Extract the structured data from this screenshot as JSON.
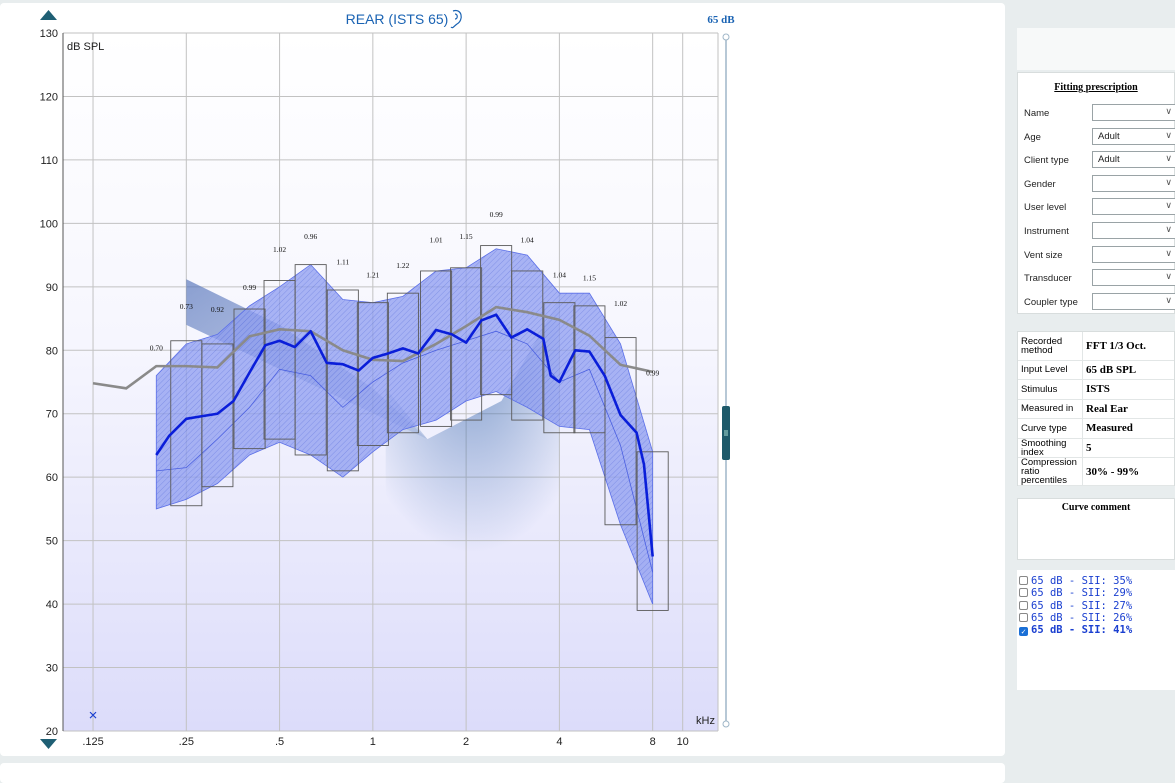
{
  "header": {
    "title": "REAR (ISTS 65)",
    "level_label": "65 dB"
  },
  "graph": {
    "y_unit": "dB SPL",
    "x_unit": "kHz",
    "y_ticks": [
      20,
      30,
      40,
      50,
      60,
      70,
      80,
      90,
      100,
      110,
      120,
      130
    ],
    "x_ticks": [
      ".125",
      ".25",
      ".5",
      "1",
      "2",
      "4",
      "8",
      "10"
    ],
    "icons": [
      "triangle-up-icon",
      "triangle-down-icon",
      "ear-icon",
      "slider-handle-icon"
    ]
  },
  "chart_data": {
    "type": "line",
    "x_scale": "log",
    "x_range_khz": [
      0.1,
      13
    ],
    "y_range": [
      20,
      130
    ],
    "target": {
      "freqs": [
        0.125,
        0.16,
        0.2,
        0.25,
        0.315,
        0.4,
        0.5,
        0.63,
        0.8,
        1,
        1.25,
        1.6,
        2,
        2.5,
        3.15,
        4,
        5,
        6.3,
        8
      ],
      "values": [
        74.8,
        74.0,
        77.5,
        77.5,
        77.3,
        82.2,
        83.3,
        83.0,
        80.0,
        78.5,
        78.3,
        81.0,
        83.8,
        86.8,
        86.0,
        84.8,
        82.3,
        77.7,
        76.6
      ]
    },
    "measured": {
      "freqs": [
        0.2,
        0.22,
        0.25,
        0.28,
        0.315,
        0.355,
        0.4,
        0.45,
        0.5,
        0.56,
        0.63,
        0.71,
        0.8,
        0.9,
        1.0,
        1.12,
        1.25,
        1.4,
        1.6,
        1.8,
        2.0,
        2.24,
        2.5,
        2.8,
        3.15,
        3.55,
        3.75,
        4.0,
        4.5,
        5.0,
        5.6,
        6.3,
        7.1,
        7.5,
        8.0
      ],
      "values": [
        63.5,
        66.5,
        69.2,
        69.6,
        70.0,
        72.0,
        76.5,
        80.8,
        81.5,
        80.5,
        83.0,
        78.0,
        77.8,
        76.8,
        78.8,
        79.5,
        80.3,
        79.5,
        83.2,
        82.5,
        81.2,
        84.7,
        85.6,
        82.0,
        83.3,
        81.8,
        76.0,
        75.0,
        80.0,
        79.8,
        76.0,
        69.8,
        67.0,
        62.0,
        47.5
      ]
    },
    "percentile_band": {
      "freqs": [
        0.2,
        0.25,
        0.315,
        0.4,
        0.5,
        0.63,
        0.8,
        1.0,
        1.25,
        1.6,
        2.0,
        2.5,
        3.15,
        4.0,
        5.0,
        6.3,
        8.0
      ],
      "upper": [
        76.0,
        81.0,
        82.5,
        87.0,
        90.0,
        93.5,
        88.0,
        87.5,
        88.5,
        92.5,
        93.0,
        96.0,
        95.0,
        89.0,
        89.0,
        81.0,
        64.0
      ],
      "lower": [
        55.0,
        56.5,
        59.0,
        63.5,
        65.5,
        63.5,
        60.0,
        64.0,
        67.5,
        69.0,
        72.0,
        73.5,
        71.0,
        68.0,
        67.5,
        52.5,
        40.0
      ],
      "median": [
        61.0,
        61.5,
        66.0,
        71.0,
        77.0,
        76.0,
        71.0,
        75.0,
        78.0,
        80.0,
        81.5,
        83.0,
        81.0,
        75.0,
        77.0,
        65.0,
        45.0
      ]
    },
    "percentile_boxes": {
      "freqs": [
        0.25,
        0.315,
        0.4,
        0.5,
        0.63,
        0.8,
        1.0,
        1.25,
        1.6,
        2.0,
        2.5,
        3.15,
        4.0,
        5.0,
        6.3,
        8.0
      ],
      "upper": [
        81.5,
        81.0,
        86.5,
        91.0,
        93.5,
        89.5,
        87.5,
        89.0,
        92.5,
        93.0,
        96.5,
        92.5,
        87.5,
        87.0,
        82.0,
        64.0
      ],
      "lower": [
        55.5,
        58.5,
        64.5,
        66.0,
        63.5,
        61.0,
        65.0,
        67.0,
        68.0,
        69.0,
        73.0,
        69.0,
        67.0,
        67.0,
        52.5,
        39.0
      ]
    },
    "compression_ratios": {
      "freqs": [
        0.2,
        0.25,
        0.315,
        0.4,
        0.5,
        0.63,
        0.8,
        1.0,
        1.25,
        1.6,
        2.0,
        2.5,
        3.15,
        4.0,
        5.0,
        6.3,
        8.0
      ],
      "labels": [
        "0.70",
        "0.73",
        "0.92",
        "0.99",
        "1.02",
        "0.96",
        "1.11",
        "1.21",
        "1.22",
        "1.01",
        "1.15",
        "0.99",
        "1.04",
        "1.04",
        "1.15",
        "1.02",
        "0.99"
      ],
      "y": [
        80.0,
        86.5,
        86.0,
        89.5,
        95.5,
        97.5,
        93.5,
        91.5,
        93.0,
        97.0,
        97.5,
        101.0,
        97.0,
        91.5,
        91.0,
        87.0,
        76.0
      ]
    },
    "unaided_marker": {
      "freq": 0.125,
      "value": 22.5
    },
    "colors": {
      "target": "#8a8a8a",
      "measured": "#0a1ed9",
      "band": "#5b6fe8",
      "shade": "#4f6fb8",
      "grid": "#c2c2c2"
    }
  },
  "fitting_prescription": {
    "title": "Fitting prescription",
    "fields": [
      {
        "label": "Name",
        "value": ""
      },
      {
        "label": "Age",
        "value": "Adult"
      },
      {
        "label": "Client type",
        "value": "Adult"
      },
      {
        "label": "Gender",
        "value": ""
      },
      {
        "label": "User level",
        "value": ""
      },
      {
        "label": "Instrument",
        "value": ""
      },
      {
        "label": "Vent size",
        "value": ""
      },
      {
        "label": "Transducer",
        "value": ""
      },
      {
        "label": "Coupler type",
        "value": ""
      }
    ]
  },
  "measurement_info": [
    {
      "label": "Recorded method",
      "value": "FFT 1/3 Oct."
    },
    {
      "label": "Input Level",
      "value": "65 dB SPL"
    },
    {
      "label": "Stimulus",
      "value": "ISTS"
    },
    {
      "label": "Measured in",
      "value": "Real Ear"
    },
    {
      "label": "Curve type",
      "value": "Measured"
    },
    {
      "label": "Smoothing index",
      "value": "5"
    },
    {
      "label": "Compression ratio percentiles",
      "value": "30% - 99%"
    }
  ],
  "curve_comment": {
    "title": "Curve comment"
  },
  "curves": [
    {
      "label": "65 dB - SII: 35%",
      "checked": false
    },
    {
      "label": "65 dB - SII: 29%",
      "checked": false
    },
    {
      "label": "65 dB - SII: 27%",
      "checked": false
    },
    {
      "label": "65 dB - SII: 26%",
      "checked": false
    },
    {
      "label": "65 dB - SII: 41%",
      "checked": true
    }
  ]
}
